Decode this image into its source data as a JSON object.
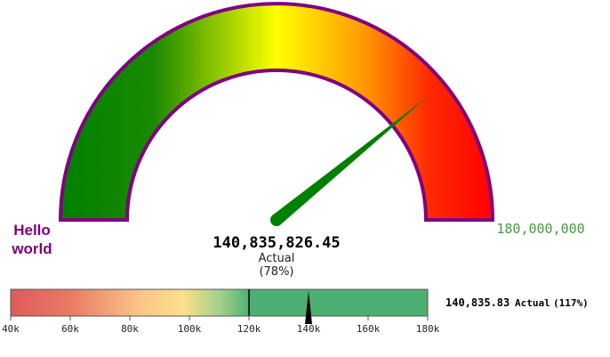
{
  "chart_data": [
    {
      "type": "gauge",
      "min_label": "Hello world",
      "max_label": "180,000,000",
      "min": 0,
      "max": 180000000,
      "value": 140835826.45,
      "value_label": "140,835,826.45",
      "caption": "Actual",
      "percent_label": "(78%)",
      "band_colors": [
        "#008000",
        "#ffff00",
        "#ff0000"
      ],
      "outline_color": "#800080",
      "needle_color": "#008000"
    },
    {
      "type": "bullet",
      "min": 40,
      "max": 180,
      "ticks": [
        "40k",
        "60k",
        "80k",
        "100k",
        "120k",
        "140k",
        "160k",
        "180k"
      ],
      "tick_values": [
        40,
        60,
        80,
        100,
        120,
        140,
        160,
        180
      ],
      "bands": [
        {
          "from": 40,
          "to": 120,
          "colors": [
            "#e05a5a",
            "#fde08a",
            "#4caf72"
          ]
        },
        {
          "from": 120,
          "to": 180,
          "color": "#4caf72"
        }
      ],
      "marker": 140,
      "target": 120,
      "value_label": "140,835.83",
      "caption": "Actual",
      "percent_label": "(117%)"
    }
  ]
}
